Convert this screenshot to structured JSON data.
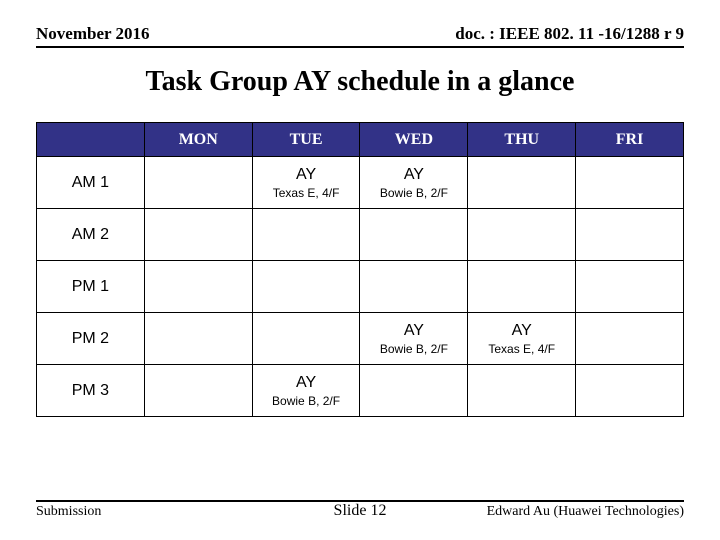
{
  "header": {
    "left": "November 2016",
    "right": "doc. : IEEE 802. 11 -16/1288 r 9"
  },
  "title": "Task Group AY schedule in a glance",
  "table": {
    "columns": [
      "MON",
      "TUE",
      "WED",
      "THU",
      "FRI"
    ],
    "rows": [
      {
        "label": "AM 1",
        "cells": [
          {
            "main": "",
            "sub": ""
          },
          {
            "main": "AY",
            "sub": "Texas E, 4/F"
          },
          {
            "main": "AY",
            "sub": "Bowie B, 2/F"
          },
          {
            "main": "",
            "sub": ""
          },
          {
            "main": "",
            "sub": ""
          }
        ]
      },
      {
        "label": "AM 2",
        "cells": [
          {
            "main": "",
            "sub": ""
          },
          {
            "main": "",
            "sub": ""
          },
          {
            "main": "",
            "sub": ""
          },
          {
            "main": "",
            "sub": ""
          },
          {
            "main": "",
            "sub": ""
          }
        ]
      },
      {
        "label": "PM 1",
        "cells": [
          {
            "main": "",
            "sub": ""
          },
          {
            "main": "",
            "sub": ""
          },
          {
            "main": "",
            "sub": ""
          },
          {
            "main": "",
            "sub": ""
          },
          {
            "main": "",
            "sub": ""
          }
        ]
      },
      {
        "label": "PM 2",
        "cells": [
          {
            "main": "",
            "sub": ""
          },
          {
            "main": "",
            "sub": ""
          },
          {
            "main": "AY",
            "sub": "Bowie B, 2/F"
          },
          {
            "main": "AY",
            "sub": "Texas E, 4/F"
          },
          {
            "main": "",
            "sub": ""
          }
        ]
      },
      {
        "label": "PM 3",
        "cells": [
          {
            "main": "",
            "sub": ""
          },
          {
            "main": "AY",
            "sub": "Bowie B, 2/F"
          },
          {
            "main": "",
            "sub": ""
          },
          {
            "main": "",
            "sub": ""
          },
          {
            "main": "",
            "sub": ""
          }
        ]
      }
    ],
    "header_bg": "#323287",
    "header_fg": "#ffffff",
    "cell_bg": "#ffffff",
    "border_color": "#000000"
  },
  "footer": {
    "left": "Submission",
    "center": "Slide 12",
    "right": "Edward Au (Huawei Technologies)"
  }
}
